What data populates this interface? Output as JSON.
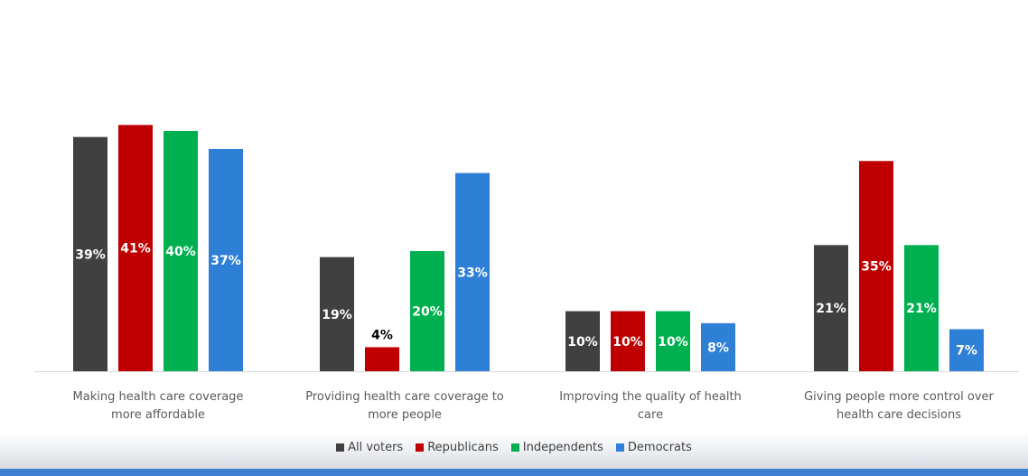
{
  "chart_data": {
    "type": "bar",
    "title": "",
    "xlabel": "",
    "ylabel": "",
    "ylim": [
      0,
      44
    ],
    "grid": false,
    "legend_position": "bottom",
    "categories": [
      [
        "Making health care coverage",
        "more affordable"
      ],
      [
        "Providing health care coverage to",
        "more people"
      ],
      [
        "Improving the quality of health",
        "care"
      ],
      [
        "Giving people more control over",
        "health care decisions"
      ]
    ],
    "series": [
      {
        "name": "All voters",
        "color": "#404040",
        "values": [
          39,
          19,
          10,
          21
        ],
        "labels": [
          "39%",
          "19%",
          "10%",
          "21%"
        ]
      },
      {
        "name": "Republicans",
        "color": "#c00000",
        "values": [
          41,
          4,
          10,
          35
        ],
        "labels": [
          "41%",
          "4%",
          "10%",
          "35%"
        ]
      },
      {
        "name": "Independents",
        "color": "#00b050",
        "values": [
          40,
          20,
          10,
          21
        ],
        "labels": [
          "40%",
          "20%",
          "10%",
          "21%"
        ]
      },
      {
        "name": "Democrats",
        "color": "#2e7fd6",
        "values": [
          37,
          33,
          8,
          7
        ],
        "labels": [
          "37%",
          "33%",
          "8%",
          "7%"
        ]
      }
    ]
  }
}
